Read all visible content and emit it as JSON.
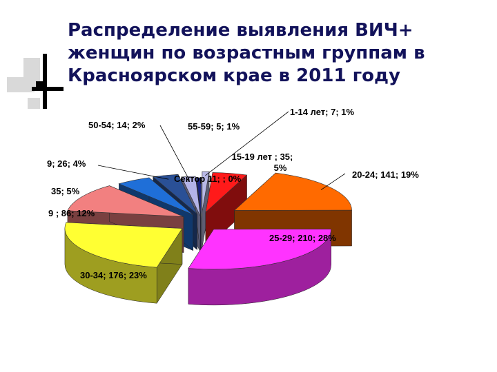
{
  "title_lines": [
    "Распределение выявления ВИЧ+",
    "женщин по возрастным группам в",
    "Красноярском крае в 2011 году"
  ],
  "colors": {
    "title": "#12125a",
    "deco_dark": "#000000",
    "deco_light": "#d9d9d9"
  },
  "chart_data": {
    "type": "pie",
    "title": "Распределение выявления ВИЧ+ женщин по возрастным группам в Красноярском крае в 2011 году",
    "style": "3d-exploded",
    "slices": [
      {
        "label": "1-14 лет; 7; 1%",
        "category": "1-14 лет",
        "value": 7,
        "percent": 1,
        "color": "#b8b8e6"
      },
      {
        "label": "15-19 лет ; 35; 5%",
        "category": "15-19 лет",
        "value": 35,
        "percent": 5,
        "color": "#ff1a1a"
      },
      {
        "label": "20-24; 141; 19%",
        "category": "20-24",
        "value": 141,
        "percent": 19,
        "color": "#ff6a00"
      },
      {
        "label": "25-29; 210; 28%",
        "category": "25-29",
        "value": 210,
        "percent": 28,
        "color": "#ff33ff"
      },
      {
        "label": "30-34; 176; 23%",
        "category": "30-34",
        "value": 176,
        "percent": 23,
        "color": "#ffff33"
      },
      {
        "label": "9 ; 86; 12%",
        "category": "",
        "value": 86,
        "percent": 12,
        "color": "#f28080"
      },
      {
        "label": "35; 5%",
        "category": "",
        "value": 35,
        "percent": 5,
        "color": "#1f6fd8"
      },
      {
        "label": "9; 26; 4%",
        "category": "",
        "value": 26,
        "percent": 4,
        "color": "#2a5096"
      },
      {
        "label": "50-54; 14; 2%",
        "category": "50-54",
        "value": 14,
        "percent": 2,
        "color": "#b3b3e8"
      },
      {
        "label": "55-59; 5; 1%",
        "category": "55-59",
        "value": 5,
        "percent": 1,
        "color": "#1a2580"
      },
      {
        "label": "Сектор 11; ; 0%",
        "category": "Сектор 11",
        "value": 0,
        "percent": 0,
        "color": "#ffffff"
      }
    ]
  }
}
